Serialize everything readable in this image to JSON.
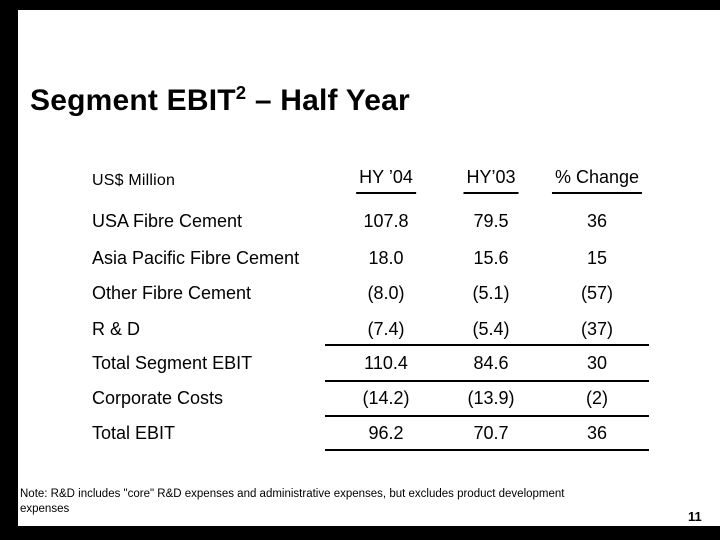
{
  "slide": {
    "background_color": "#ffffff",
    "frame_color": "#000000",
    "text_color": "#000000",
    "title": {
      "text": "Segment EBIT",
      "superscript": "2",
      "text_after": " – Half Year"
    },
    "table": {
      "unit_label": "US$ Million",
      "columns": [
        {
          "label": "HY ’04"
        },
        {
          "label": "HY’03"
        },
        {
          "label": "% Change"
        }
      ],
      "rows": [
        {
          "label": "USA Fibre Cement",
          "hy04": "107.8",
          "hy03": "79.5",
          "change": "36"
        },
        {
          "label": "Asia Pacific Fibre Cement",
          "hy04": "18.0",
          "hy03": "15.6",
          "change": "15"
        },
        {
          "label": "Other Fibre Cement",
          "hy04": "(8.0)",
          "hy03": "(5.1)",
          "change": "(57)"
        },
        {
          "label": "R & D",
          "hy04": "(7.4)",
          "hy03": "(5.4)",
          "change": "(37)"
        },
        {
          "label": "Total Segment EBIT",
          "hy04": "110.4",
          "hy03": "84.6",
          "change": "30"
        },
        {
          "label": "Corporate Costs",
          "hy04": "(14.2)",
          "hy03": "(13.9)",
          "change": "(2)"
        },
        {
          "label": "Total EBIT",
          "hy04": "96.2",
          "hy03": "70.7",
          "change": "36"
        }
      ]
    },
    "note_lines": {
      "line1": "Note: R&D includes \"core\" R&D expenses and administrative expenses, but excludes product development",
      "line2": "expenses"
    },
    "page_number": "11"
  }
}
